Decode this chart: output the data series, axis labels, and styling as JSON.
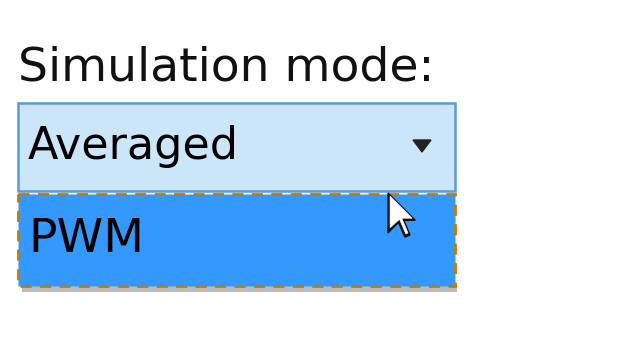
{
  "background_color": "#ffffff",
  "title_text": "Simulation mode:",
  "title_fontsize": 34,
  "title_color": "#111111",
  "dropdown_bg": "#cce6f9",
  "dropdown_border": "#5b9bd5",
  "averaged_text": "Averaged",
  "averaged_fontsize": 32,
  "averaged_color": "#000000",
  "pwm_bg": "#3399ff",
  "pwm_border_color": "#c87800",
  "pwm_text": "PWM",
  "pwm_fontsize": 34,
  "pwm_color": "#000000",
  "cursor_color_white": "#ffffff",
  "cursor_color_black": "#111111"
}
